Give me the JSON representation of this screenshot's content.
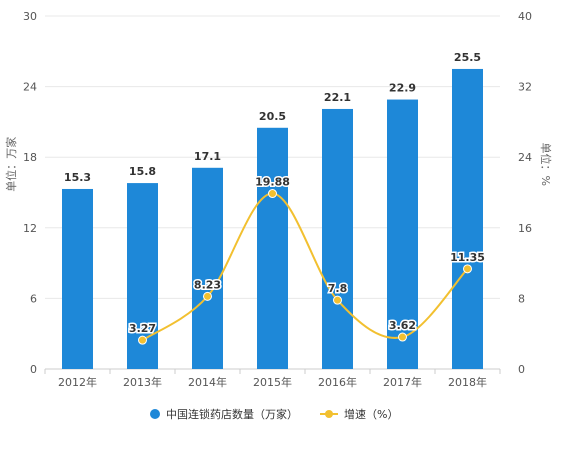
{
  "chart_data": {
    "type": "bar",
    "categories": [
      "2012年",
      "2013年",
      "2014年",
      "2015年",
      "2016年",
      "2017年",
      "2018年"
    ],
    "series": [
      {
        "name": "中国连锁药店数量（万家）",
        "type": "bar",
        "axis": "left",
        "color": "#1e88d8",
        "values": [
          15.3,
          15.8,
          17.1,
          20.5,
          22.1,
          22.9,
          25.5
        ],
        "labels": [
          "15.3",
          "15.8",
          "17.1",
          "20.5",
          "22.1",
          "22.9",
          "25.5"
        ]
      },
      {
        "name": "增速（%）",
        "type": "line",
        "axis": "right",
        "color": "#f2c030",
        "values": [
          null,
          3.27,
          8.23,
          19.88,
          7.8,
          3.62,
          11.35
        ],
        "labels": [
          "",
          "3.27",
          "8.23",
          "19.88",
          "7.8",
          "3.62",
          "11.35"
        ]
      }
    ],
    "left_axis": {
      "label": "单位：万家",
      "range": [
        0,
        30
      ],
      "ticks": [
        "0",
        "6",
        "12",
        "18",
        "24",
        "30"
      ]
    },
    "right_axis": {
      "label": "单位：%",
      "range": [
        0,
        40
      ],
      "ticks": [
        "0",
        "8",
        "16",
        "24",
        "32",
        "40"
      ]
    },
    "grid": true,
    "legend_position": "bottom"
  }
}
